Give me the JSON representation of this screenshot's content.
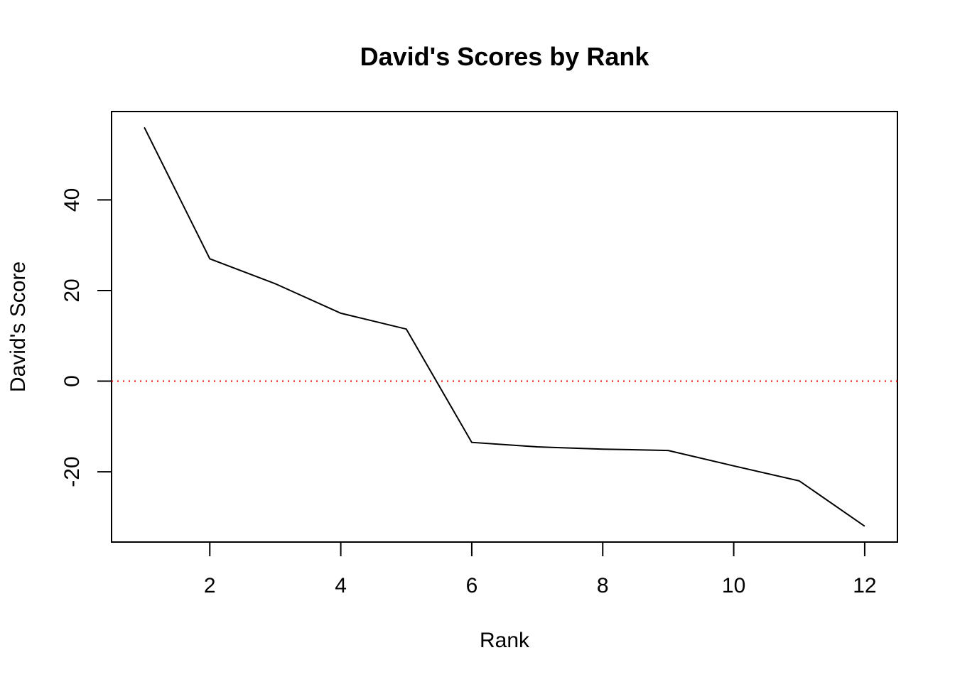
{
  "chart_data": {
    "type": "line",
    "title": "David's Scores by Rank",
    "xlabel": "Rank",
    "ylabel": "David's Score",
    "x": [
      1,
      2,
      3,
      4,
      5,
      6,
      7,
      8,
      9,
      10,
      11,
      12
    ],
    "series": [
      {
        "values": [
          56,
          27,
          21.5,
          15,
          11.5,
          -13.5,
          -14.5,
          -15,
          -15.3,
          -18.7,
          -22,
          -32
        ],
        "color": "#000000"
      }
    ],
    "reference_line": {
      "y": 0,
      "color": "#ff0000",
      "style": "dotted"
    },
    "xlim": [
      0.5,
      12.5
    ],
    "ylim": [
      -35.5,
      59.5
    ],
    "xticks": [
      2,
      4,
      6,
      8,
      10,
      12
    ],
    "yticks": [
      -20,
      0,
      20,
      40
    ],
    "grid": false,
    "legend": "none"
  }
}
